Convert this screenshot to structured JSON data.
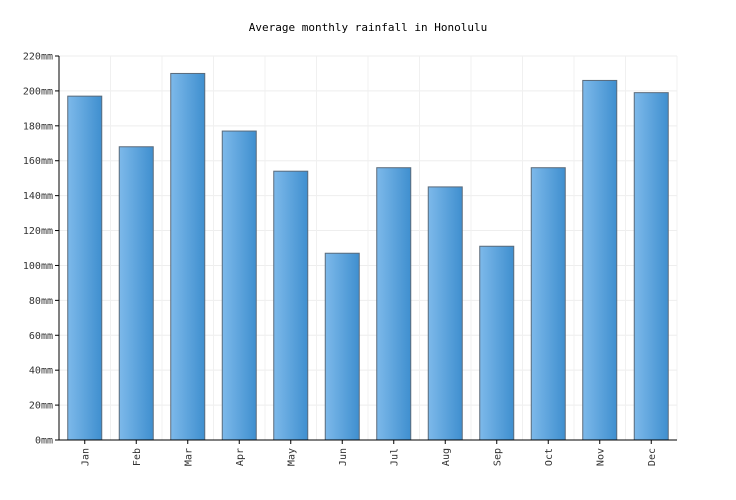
{
  "chart_data": {
    "type": "bar",
    "title": "Average monthly rainfall in Honolulu",
    "xlabel": "",
    "ylabel": "",
    "categories": [
      "Jan",
      "Feb",
      "Mar",
      "Apr",
      "May",
      "Jun",
      "Jul",
      "Aug",
      "Sep",
      "Oct",
      "Nov",
      "Dec"
    ],
    "values": [
      197,
      168,
      210,
      177,
      154,
      107,
      156,
      145,
      111,
      156,
      206,
      199
    ],
    "y_ticks": [
      "0mm",
      "20mm",
      "40mm",
      "60mm",
      "80mm",
      "100mm",
      "120mm",
      "140mm",
      "160mm",
      "180mm",
      "200mm",
      "220mm"
    ],
    "ylim": [
      0,
      220
    ],
    "grid": true,
    "bar_color": "#5aa5e0",
    "bar_color_light": "#7db9ea",
    "bar_color_dark": "#3f8fcf",
    "bar_stroke": "#5a6a7a"
  }
}
